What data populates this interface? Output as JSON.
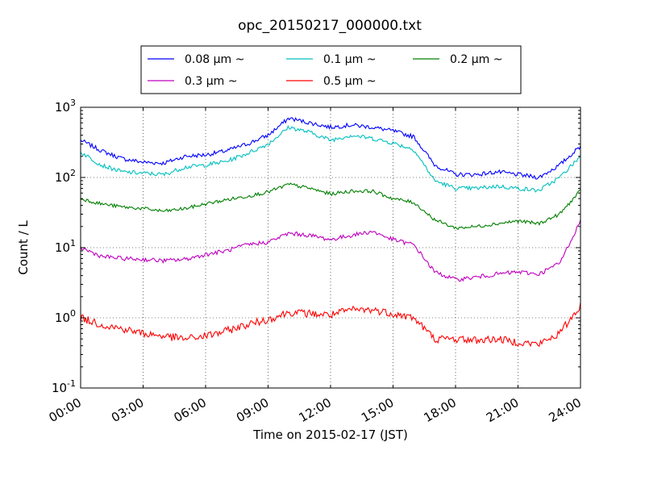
{
  "chart_data": {
    "type": "line",
    "title": "opc_20150217_000000.txt",
    "xlabel": "Time on 2015-02-17 (JST)",
    "ylabel": "Count / L",
    "yscale": "log",
    "ylim": [
      0.1,
      1000
    ],
    "xlim": [
      "00:00",
      "24:00"
    ],
    "x_ticks": [
      "00:00",
      "03:00",
      "06:00",
      "09:00",
      "12:00",
      "15:00",
      "18:00",
      "21:00",
      "24:00"
    ],
    "y_ticks": [
      {
        "base": "10",
        "exp": "-1"
      },
      {
        "base": "10",
        "exp": "0"
      },
      {
        "base": "10",
        "exp": "1"
      },
      {
        "base": "10",
        "exp": "2"
      },
      {
        "base": "10",
        "exp": "3"
      }
    ],
    "grid": true,
    "legend_position": "top-center",
    "x": [
      "00:00",
      "01:00",
      "02:00",
      "03:00",
      "04:00",
      "05:00",
      "06:00",
      "07:00",
      "08:00",
      "09:00",
      "10:00",
      "11:00",
      "12:00",
      "13:00",
      "14:00",
      "15:00",
      "16:00",
      "17:00",
      "18:00",
      "19:00",
      "20:00",
      "21:00",
      "22:00",
      "23:00",
      "24:00"
    ],
    "series": [
      {
        "name": "0.08 μm ~",
        "color": "#0000ff",
        "values": [
          340,
          240,
          185,
          165,
          160,
          200,
          210,
          240,
          300,
          400,
          700,
          600,
          520,
          560,
          520,
          460,
          380,
          150,
          110,
          110,
          120,
          110,
          100,
          150,
          280
        ]
      },
      {
        "name": "0.1 μm ~",
        "color": "#00bfbf",
        "values": [
          230,
          150,
          120,
          115,
          110,
          140,
          150,
          170,
          220,
          300,
          520,
          440,
          340,
          400,
          360,
          310,
          250,
          90,
          70,
          70,
          75,
          70,
          65,
          100,
          200
        ]
      },
      {
        "name": "0.2 μm ~",
        "color": "#008000",
        "values": [
          50,
          42,
          38,
          36,
          33,
          36,
          42,
          48,
          54,
          62,
          80,
          70,
          58,
          64,
          64,
          50,
          44,
          25,
          19,
          20,
          22,
          24,
          22,
          30,
          65
        ]
      },
      {
        "name": "0.3 μm ~",
        "color": "#bf00bf",
        "values": [
          10,
          7.5,
          7,
          6.8,
          6.5,
          6.8,
          8,
          9,
          11,
          12,
          16,
          15,
          13,
          15,
          17,
          13,
          11,
          4.5,
          3.5,
          3.8,
          4.2,
          4.5,
          4.2,
          6,
          24
        ]
      },
      {
        "name": "0.5 μm ~",
        "color": "#ff0000",
        "values": [
          1.0,
          0.8,
          0.7,
          0.6,
          0.55,
          0.5,
          0.55,
          0.65,
          0.8,
          0.95,
          1.2,
          1.15,
          1.1,
          1.3,
          1.3,
          1.15,
          1.0,
          0.5,
          0.5,
          0.48,
          0.5,
          0.45,
          0.42,
          0.6,
          1.5
        ]
      }
    ]
  }
}
